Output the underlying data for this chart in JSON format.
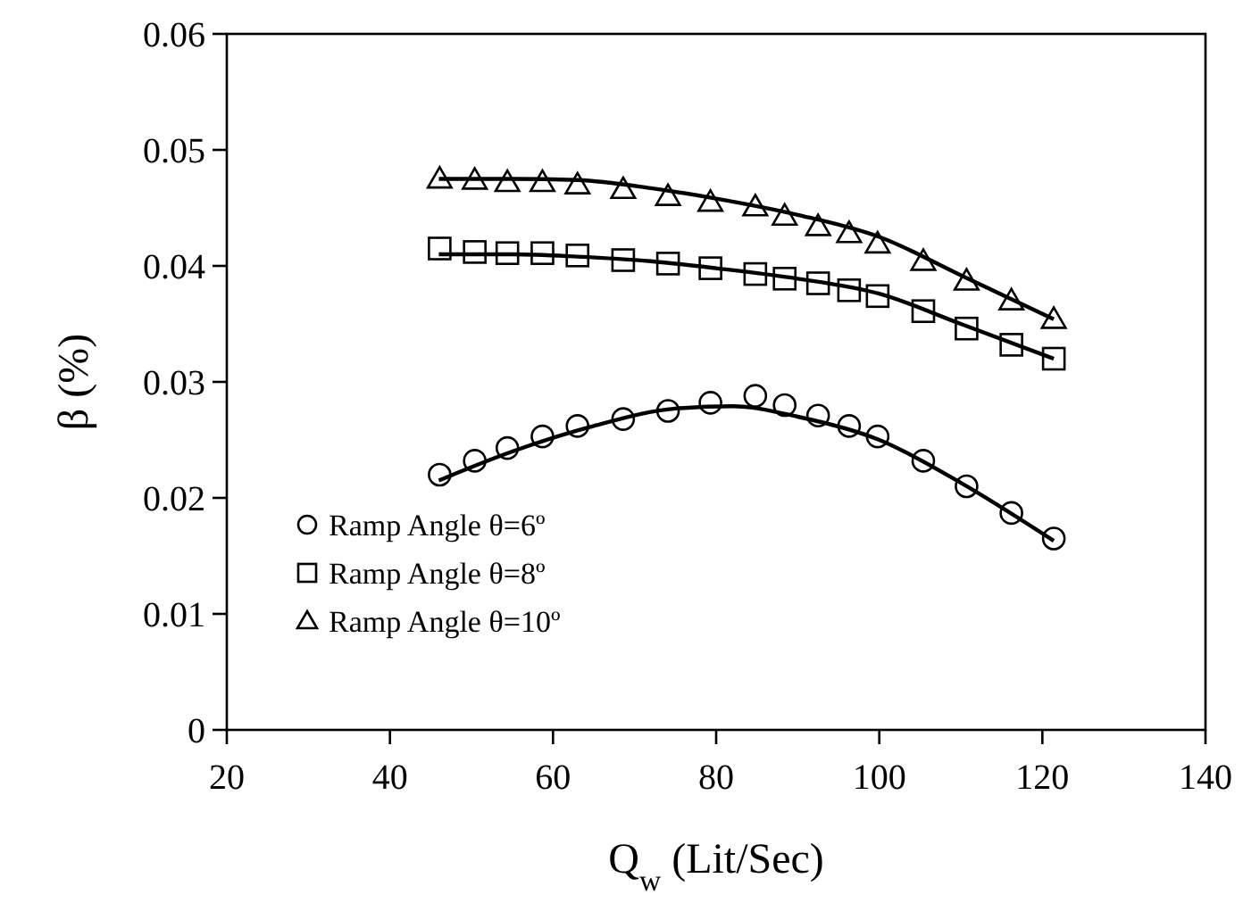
{
  "chart_data": {
    "type": "scatter",
    "xlabel": "Q$_{w}$ (Lit/Sec)",
    "ylabel": "β (%)",
    "x": [
      46.1,
      50.4,
      54.4,
      58.7,
      63.0,
      68.6,
      74.1,
      79.3,
      84.8,
      88.4,
      92.5,
      96.3,
      99.8,
      105.4,
      110.7,
      116.2,
      121.4
    ],
    "series": [
      {
        "name": "Ramp Angle θ=6º",
        "color": "#000000",
        "marker": "circle",
        "values": [
          0.022,
          0.0232,
          0.0243,
          0.0253,
          0.0262,
          0.0268,
          0.0275,
          0.0282,
          0.0288,
          0.028,
          0.0271,
          0.0262,
          0.0253,
          0.0232,
          0.021,
          0.0187,
          0.0165
        ]
      },
      {
        "name": "Ramp Angle θ=8º",
        "color": "#000000",
        "marker": "square",
        "values": [
          0.0415,
          0.0412,
          0.0411,
          0.0411,
          0.0409,
          0.0405,
          0.0402,
          0.0398,
          0.0393,
          0.0389,
          0.0385,
          0.0379,
          0.0374,
          0.0361,
          0.0346,
          0.0332,
          0.032
        ]
      },
      {
        "name": "Ramp Angle θ=10º",
        "color": "#000000",
        "marker": "triangle",
        "values": [
          0.0475,
          0.0474,
          0.0472,
          0.0472,
          0.047,
          0.0466,
          0.046,
          0.0455,
          0.0451,
          0.0443,
          0.0434,
          0.0428,
          0.0419,
          0.0404,
          0.0387,
          0.037,
          0.0354
        ]
      },
      {
        "type": "line",
        "color": "#000000",
        "marker": "none",
        "line_style": "solid",
        "x": [
          46,
          55,
          65,
          75,
          82,
          90,
          100,
          110,
          121.4
        ],
        "values": [
          0.0215,
          0.024,
          0.0262,
          0.0277,
          0.0279,
          0.027,
          0.025,
          0.0213,
          0.0163
        ]
      },
      {
        "type": "line",
        "color": "#000000",
        "marker": "none",
        "line_style": "solid",
        "x": [
          46,
          55,
          63,
          72,
          80,
          90,
          100,
          110,
          121.4
        ],
        "values": [
          0.041,
          0.041,
          0.0408,
          0.0404,
          0.0398,
          0.0389,
          0.0376,
          0.035,
          0.032
        ]
      },
      {
        "type": "line",
        "color": "#000000",
        "marker": "none",
        "line_style": "solid",
        "x": [
          46,
          55,
          63,
          72,
          80,
          90,
          100,
          110,
          121.4
        ],
        "values": [
          0.0475,
          0.0475,
          0.0474,
          0.0467,
          0.0458,
          0.0444,
          0.0425,
          0.0392,
          0.0354
        ]
      }
    ],
    "xlim": [
      20,
      140
    ],
    "xticks": [
      20,
      40,
      60,
      80,
      100,
      120,
      140
    ],
    "ylim": [
      0,
      0.06
    ],
    "yticks": [
      {
        "value": 0,
        "label": "0"
      },
      {
        "value": 0.01,
        "label": "0.01"
      },
      {
        "value": 0.02,
        "label": "0.02"
      },
      {
        "value": 0.03,
        "label": "0.03"
      },
      {
        "value": 0.04,
        "label": "0.04"
      },
      {
        "value": 0.05,
        "label": "0.05"
      },
      {
        "value": 0.06,
        "label": "0.06"
      }
    ],
    "grid": false,
    "legend": "bottom left"
  }
}
